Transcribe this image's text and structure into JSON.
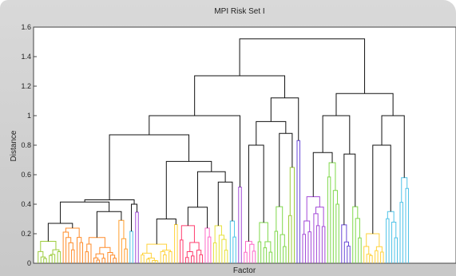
{
  "chart_data": {
    "type": "dendrogram",
    "title": "MPI Risk Set I",
    "xlabel": "Factor",
    "ylabel": "Distance",
    "ylim": [
      0,
      1.6
    ],
    "yticks": [
      "0",
      "0.2",
      "0.4",
      "0.6",
      "0.8",
      "1",
      "1.2",
      "1.4",
      "1.6"
    ],
    "grid": false,
    "leaf_count_approx": 150,
    "top_merges": [
      {
        "name": "root",
        "height": 1.52
      },
      {
        "name": "left-main",
        "height": 1.27
      },
      {
        "name": "right-main",
        "height": 1.15
      },
      {
        "name": "left-left",
        "height": 1.0
      },
      {
        "name": "right-right",
        "height": 1.0
      },
      {
        "name": "left-right",
        "height": 1.12
      },
      {
        "name": "left-left-a",
        "height": 0.87
      },
      {
        "name": "left-right-a",
        "height": 0.96
      }
    ],
    "cluster_colors": [
      "#9ccc3a",
      "#ff8c2a",
      "#ff9f2e",
      "#ffd23a",
      "#ff3c6e",
      "#e6e23a",
      "#4fc3e8",
      "#a34ad8",
      "#ff69c8",
      "#7fd84a",
      "#6a4ad8"
    ]
  }
}
